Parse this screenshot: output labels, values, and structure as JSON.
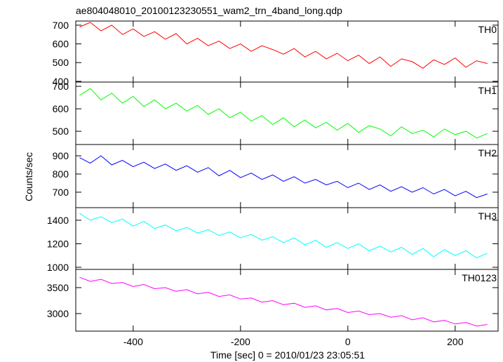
{
  "chart_data": {
    "type": "line",
    "title": "ae804048010_20100123230551_wam2_trn_4band_long.qdp",
    "xlabel": "Time [sec] 0 = 2010/01/23 23:05:51",
    "ylabel": "Counts/sec",
    "xlim": [
      -507,
      280
    ],
    "xticks": [
      -400,
      -200,
      0,
      200
    ],
    "x": [
      -500,
      -480,
      -460,
      -440,
      -420,
      -400,
      -380,
      -360,
      -340,
      -320,
      -300,
      -280,
      -260,
      -240,
      -220,
      -200,
      -180,
      -160,
      -140,
      -120,
      -100,
      -80,
      -60,
      -40,
      -20,
      0,
      20,
      40,
      60,
      80,
      100,
      120,
      140,
      160,
      180,
      200,
      220,
      240,
      260
    ],
    "series": [
      {
        "name": "TH0",
        "color": "#ff0000",
        "ylim": [
          396,
          722
        ],
        "yticks": [
          400,
          500,
          600,
          700
        ],
        "values": [
          690,
          715,
          670,
          700,
          650,
          680,
          640,
          665,
          625,
          655,
          600,
          630,
          590,
          615,
          575,
          600,
          560,
          590,
          570,
          545,
          575,
          530,
          560,
          520,
          550,
          510,
          540,
          495,
          530,
          480,
          520,
          505,
          470,
          515,
          490,
          525,
          475,
          510,
          495
        ]
      },
      {
        "name": "TH1",
        "color": "#00ff00",
        "ylim": [
          441,
          719
        ],
        "yticks": [
          500,
          600,
          700
        ],
        "values": [
          660,
          690,
          640,
          670,
          625,
          655,
          610,
          640,
          600,
          625,
          590,
          615,
          575,
          600,
          560,
          585,
          545,
          570,
          530,
          560,
          520,
          550,
          515,
          540,
          505,
          535,
          495,
          525,
          510,
          480,
          520,
          490,
          505,
          475,
          510,
          485,
          500,
          470,
          490
        ]
      },
      {
        "name": "TH2",
        "color": "#0000ff",
        "ylim": [
          615,
          962
        ],
        "yticks": [
          700,
          800,
          900
        ],
        "values": [
          890,
          860,
          900,
          850,
          875,
          840,
          865,
          830,
          855,
          820,
          845,
          810,
          835,
          790,
          820,
          780,
          805,
          770,
          795,
          760,
          785,
          750,
          770,
          740,
          760,
          725,
          750,
          715,
          740,
          705,
          730,
          700,
          725,
          690,
          715,
          680,
          705,
          670,
          690
        ]
      },
      {
        "name": "TH3",
        "color": "#00ffff",
        "ylim": [
          982,
          1507
        ],
        "yticks": [
          1000,
          1200,
          1400
        ],
        "values": [
          1460,
          1400,
          1430,
          1380,
          1410,
          1350,
          1390,
          1330,
          1360,
          1310,
          1340,
          1290,
          1320,
          1270,
          1300,
          1250,
          1280,
          1230,
          1260,
          1210,
          1250,
          1190,
          1230,
          1170,
          1210,
          1160,
          1200,
          1140,
          1180,
          1130,
          1170,
          1110,
          1160,
          1090,
          1150,
          1100,
          1140,
          1080,
          1120
        ]
      },
      {
        "name": "TH0123",
        "color": "#ff00ff",
        "ylim": [
          2662,
          3851
        ],
        "yticks": [
          3000,
          3500
        ],
        "values": [
          3700,
          3620,
          3660,
          3580,
          3600,
          3520,
          3560,
          3480,
          3500,
          3430,
          3460,
          3380,
          3410,
          3330,
          3360,
          3280,
          3300,
          3220,
          3250,
          3170,
          3200,
          3120,
          3150,
          3070,
          3100,
          3020,
          3050,
          2980,
          3000,
          2930,
          2960,
          2880,
          2920,
          2840,
          2870,
          2800,
          2830,
          2760,
          2790
        ]
      }
    ]
  }
}
